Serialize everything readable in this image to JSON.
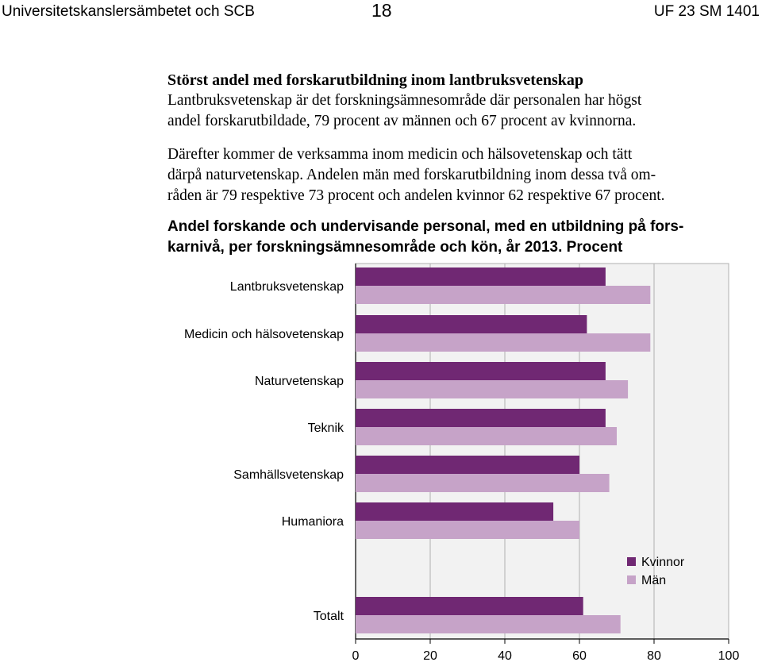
{
  "header": {
    "left": "Universitetskanslersämbetet och SCB",
    "page_number": "18",
    "right": "UF 23 SM 1401"
  },
  "section": {
    "heading": "Störst andel med forskarutbildning inom lantbruksvetenskap",
    "para1_lines": [
      "Lantbruksvetenskap är det forskningsämnesområde där personalen har högst",
      "andel forskarutbildade, 79 procent av männen och 67 procent av kvinnorna."
    ],
    "para2_lines": [
      "Därefter kommer de verksamma inom medicin och hälsovetenskap och tätt",
      "därpå naturvetenskap. Andelen män med forskarutbildning inom dessa två om-",
      "råden är 79 respektive 73 procent och andelen kvinnor 62 respektive 67 procent."
    ]
  },
  "figure": {
    "title_lines": [
      "Andel forskande och undervisande personal, med en utbildning på fors-",
      "karnivå, per forskningsämnesområde och kön, år 2013. Procent"
    ]
  },
  "chart_data": {
    "type": "bar",
    "orientation": "horizontal",
    "categories": [
      "Lantbruksvetenskap",
      "Medicin och hälsovetenskap",
      "Naturvetenskap",
      "Teknik",
      "Samhällsvetenskap",
      "Humaniora",
      "Totalt"
    ],
    "series": [
      {
        "name": "Kvinnor",
        "values": [
          67,
          62,
          67,
          67,
          60,
          53,
          61
        ],
        "color": "#702873"
      },
      {
        "name": "Män",
        "values": [
          79,
          79,
          73,
          70,
          68,
          60,
          71
        ],
        "color": "#c6a3c8"
      }
    ],
    "xlim": [
      0,
      100
    ],
    "xticks": [
      0,
      20,
      40,
      60,
      80,
      100
    ],
    "grid": true,
    "legend_position": "right"
  }
}
